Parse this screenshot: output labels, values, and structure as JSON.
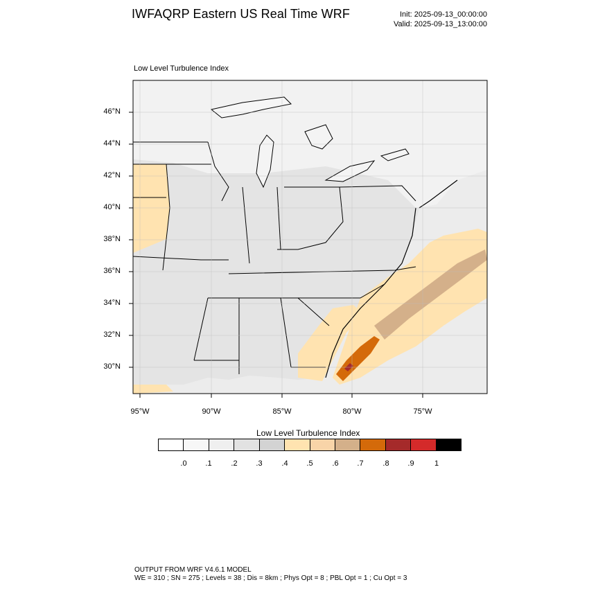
{
  "title": "IWFAQRP Eastern US Real Time WRF",
  "init_time": "Init: 2025-09-13_00:00:00",
  "valid_time": "Valid: 2025-09-13_13:00:00",
  "panel_title": "Low Level Turbulence Index",
  "lat_labels": [
    "46°N",
    "44°N",
    "42°N",
    "40°N",
    "38°N",
    "36°N",
    "34°N",
    "32°N",
    "30°N"
  ],
  "lon_labels": [
    "95°W",
    "90°W",
    "85°W",
    "80°W",
    "75°W"
  ],
  "colorbar": {
    "title": "Low Level Turbulence Index",
    "colors": [
      "#ffffff",
      "#f7f7f7",
      "#efefef",
      "#e2e2e2",
      "#d3d3d3",
      "#ffe3b0",
      "#f8d4a8",
      "#d4b08a",
      "#d46a0a",
      "#a52a2a",
      "#d42a2a",
      "#000000"
    ],
    "labels": [
      ".0",
      ".1",
      ".2",
      ".3",
      ".4",
      ".5",
      ".6",
      ".7",
      ".8",
      ".9",
      "1"
    ]
  },
  "footer": {
    "line1": "OUTPUT FROM WRF V4.6.1 MODEL",
    "line2": "WE = 310 ; SN = 275 ; Levels = 38 ; Dis = 8km ; Phys Opt = 8 ; PBL Opt = 1 ; Cu Opt = 3"
  }
}
